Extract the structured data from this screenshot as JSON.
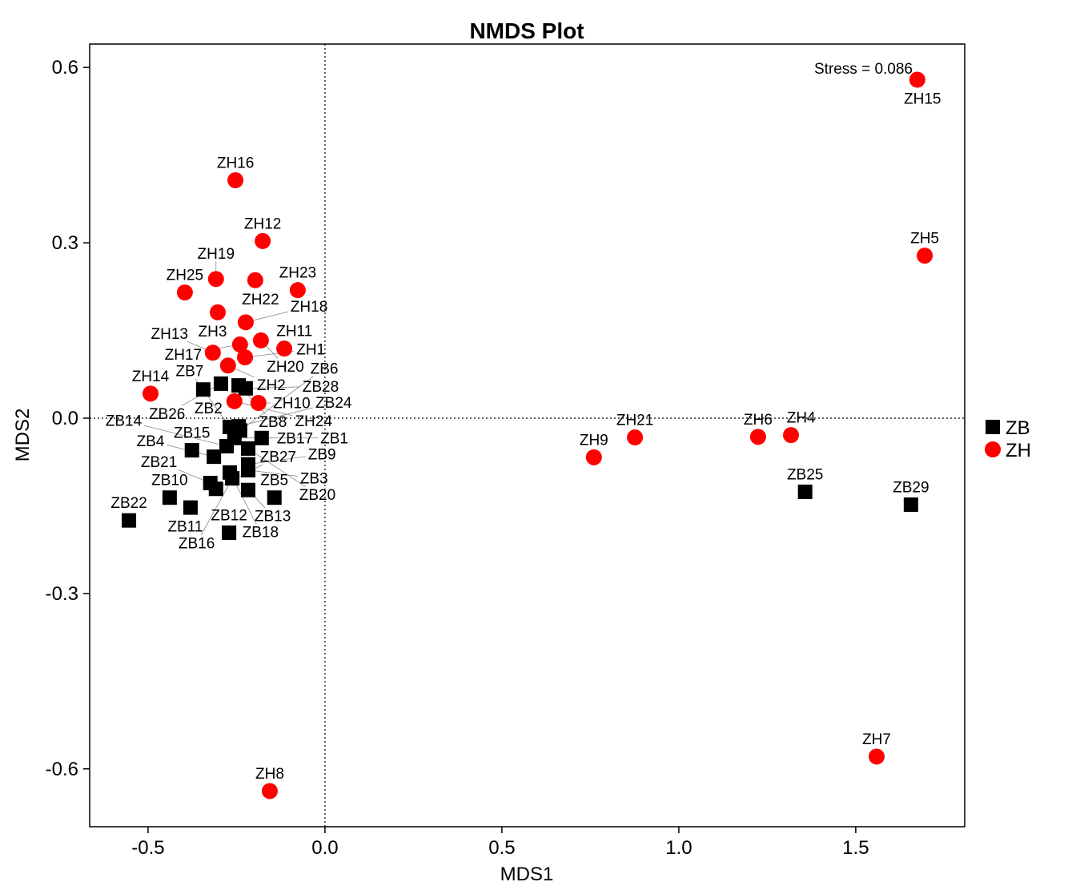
{
  "chart_data": {
    "type": "scatter",
    "title": "NMDS Plot",
    "xlabel": "MDS1",
    "ylabel": "MDS2",
    "xlim": [
      -0.665,
      1.808
    ],
    "ylim": [
      -0.699,
      0.64
    ],
    "xticks": [
      -0.5,
      0.0,
      0.5,
      1.0,
      1.5
    ],
    "xtick_labels": [
      "-0.5",
      "0.0",
      "0.5",
      "1.0",
      "1.5"
    ],
    "yticks": [
      -0.6,
      -0.3,
      0.0,
      0.3,
      0.6
    ],
    "ytick_labels": [
      "-0.6",
      "-0.3",
      "0.0",
      "0.3",
      "0.6"
    ],
    "reference_lines": {
      "x": 0,
      "y": 0
    },
    "annotation": "Stress = 0.086",
    "legend": {
      "placement": "right",
      "entries": [
        {
          "label": "ZB",
          "color": "#000000",
          "shape": "square"
        },
        {
          "label": "ZH",
          "color": "#ff0000",
          "shape": "circle"
        }
      ]
    },
    "series": [
      {
        "name": "ZH",
        "color": "#ff0000",
        "shape": "circle",
        "points": [
          {
            "label": "ZH15",
            "x": 1.674,
            "y": 0.579
          },
          {
            "label": "ZH5",
            "x": 1.695,
            "y": 0.278
          },
          {
            "label": "ZH7",
            "x": 1.559,
            "y": -0.579
          },
          {
            "label": "ZH21",
            "x": 0.876,
            "y": -0.033
          },
          {
            "label": "ZH9",
            "x": 0.76,
            "y": -0.067
          },
          {
            "label": "ZH6",
            "x": 1.224,
            "y": -0.032
          },
          {
            "label": "ZH4",
            "x": 1.317,
            "y": -0.029
          },
          {
            "label": "ZH8",
            "x": -0.156,
            "y": -0.638
          },
          {
            "label": "ZH16",
            "x": -0.253,
            "y": 0.407
          },
          {
            "label": "ZH12",
            "x": -0.176,
            "y": 0.303
          },
          {
            "label": "ZH19",
            "x": -0.308,
            "y": 0.238
          },
          {
            "label": "ZH22",
            "x": -0.197,
            "y": 0.236
          },
          {
            "label": "ZH23",
            "x": -0.077,
            "y": 0.219
          },
          {
            "label": "ZH25",
            "x": -0.396,
            "y": 0.215
          },
          {
            "label": "ZH3",
            "x": -0.303,
            "y": 0.181
          },
          {
            "label": "ZH18",
            "x": -0.224,
            "y": 0.164
          },
          {
            "label": "ZH20",
            "x": -0.181,
            "y": 0.133
          },
          {
            "label": "ZH11",
            "x": -0.115,
            "y": 0.119
          },
          {
            "label": "ZH13",
            "x": -0.317,
            "y": 0.112
          },
          {
            "label": "ZH17",
            "x": -0.24,
            "y": 0.126
          },
          {
            "label": "ZH1",
            "x": -0.226,
            "y": 0.104
          },
          {
            "label": "ZH2",
            "x": -0.274,
            "y": 0.09
          },
          {
            "label": "ZH14",
            "x": -0.493,
            "y": 0.042
          },
          {
            "label": "ZH24",
            "x": -0.256,
            "y": 0.029
          },
          {
            "label": "ZH10",
            "x": -0.188,
            "y": 0.026
          }
        ]
      },
      {
        "name": "ZB",
        "color": "#000000",
        "shape": "square",
        "points": [
          {
            "label": "ZB25",
            "x": 1.357,
            "y": -0.126
          },
          {
            "label": "ZB29",
            "x": 1.656,
            "y": -0.148
          },
          {
            "label": "ZB22",
            "x": -0.554,
            "y": -0.175
          },
          {
            "label": "ZB12",
            "x": -0.271,
            "y": -0.196
          },
          {
            "label": "ZB10",
            "x": -0.439,
            "y": -0.136
          },
          {
            "label": "ZB11",
            "x": -0.38,
            "y": -0.153
          },
          {
            "label": "ZB5",
            "x": -0.143,
            "y": -0.136
          },
          {
            "label": "ZB15",
            "x": -0.376,
            "y": -0.055
          },
          {
            "label": "ZB2",
            "x": -0.344,
            "y": 0.049
          },
          {
            "label": "ZB26",
            "x": -0.294,
            "y": 0.059
          },
          {
            "label": "ZB8",
            "x": -0.244,
            "y": 0.056
          },
          {
            "label": "ZB28",
            "x": -0.224,
            "y": 0.051
          },
          {
            "label": "ZB24",
            "x": -0.244,
            "y": -0.014
          },
          {
            "label": "ZB17",
            "x": -0.179,
            "y": -0.034
          },
          {
            "label": "ZB4",
            "x": -0.314,
            "y": -0.066
          },
          {
            "label": "ZB1",
            "x": -0.256,
            "y": -0.034
          },
          {
            "label": "ZB7",
            "x": -0.269,
            "y": -0.015
          },
          {
            "label": "ZB6",
            "x": -0.24,
            "y": -0.021
          },
          {
            "label": "ZB20",
            "x": -0.217,
            "y": -0.052
          },
          {
            "label": "ZB14",
            "x": -0.278,
            "y": -0.048
          },
          {
            "label": "ZB21",
            "x": -0.324,
            "y": -0.111
          },
          {
            "label": "ZB27",
            "x": -0.308,
            "y": -0.121
          },
          {
            "label": "ZB16",
            "x": -0.262,
            "y": -0.103
          },
          {
            "label": "ZB3",
            "x": -0.217,
            "y": -0.089
          },
          {
            "label": "ZB9",
            "x": -0.217,
            "y": -0.079
          },
          {
            "label": "ZB13",
            "x": -0.217,
            "y": -0.123
          },
          {
            "label": "ZB18",
            "x": -0.269,
            "y": -0.093
          }
        ]
      }
    ]
  }
}
